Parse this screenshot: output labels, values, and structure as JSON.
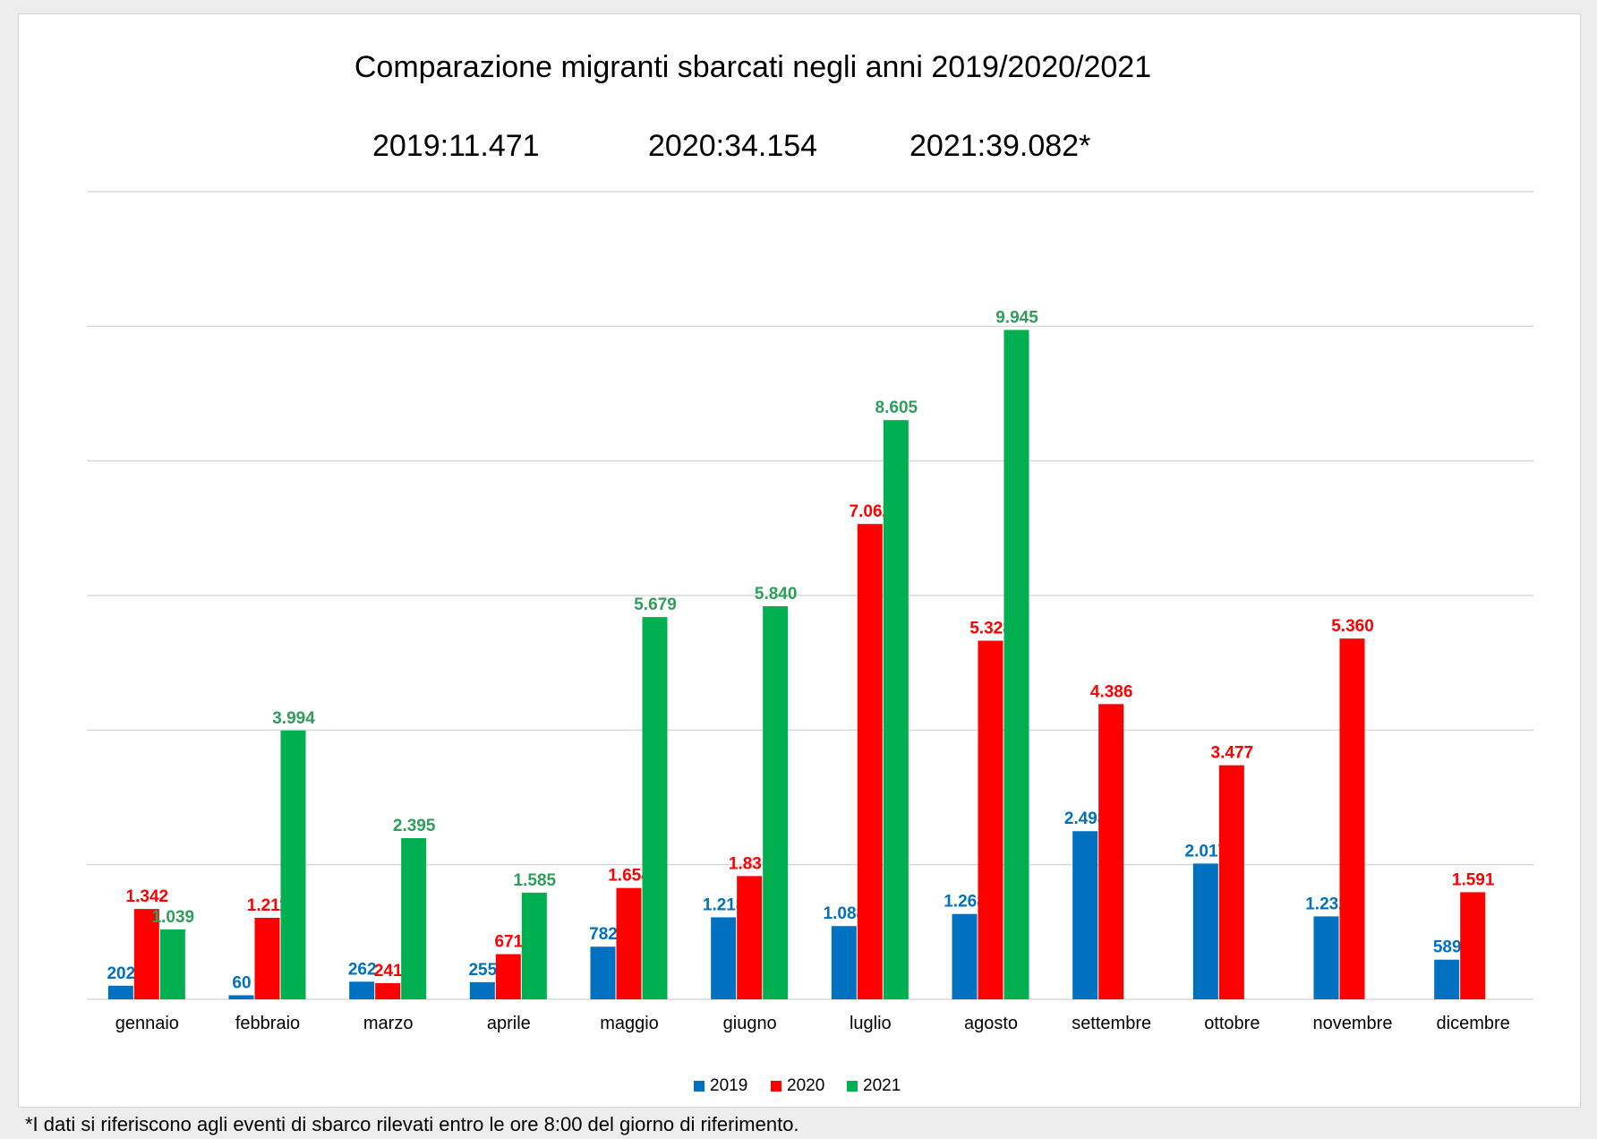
{
  "chart_data": {
    "type": "bar",
    "title": "Comparazione migranti sbarcati negli anni 2019/2020/2021",
    "totals": [
      "2019:11.471",
      "2020:34.154",
      "2021:39.082*"
    ],
    "categories": [
      "gennaio",
      "febbraio",
      "marzo",
      "aprile",
      "maggio",
      "giugno",
      "luglio",
      "agosto",
      "settembre",
      "ottobre",
      "novembre",
      "dicembre"
    ],
    "series": [
      {
        "name": "2019",
        "color": "#0070c0",
        "values": [
          202,
          60,
          262,
          255,
          782,
          1218,
          1088,
          1268,
          2498,
          2017,
          1232,
          589
        ],
        "labels": [
          "202",
          "60",
          "262",
          "255",
          "782",
          "1.218",
          "1.088",
          "1.268",
          "2.498",
          "2.017",
          "1.232",
          "589"
        ]
      },
      {
        "name": "2020",
        "color": "#ff0000",
        "values": [
          1342,
          1211,
          241,
          671,
          1654,
          1831,
          7062,
          5328,
          4386,
          3477,
          5360,
          1591
        ],
        "labels": [
          "1.342",
          "1.211",
          "241",
          "671",
          "1.654",
          "1.831",
          "7.062",
          "5.328",
          "4.386",
          "3.477",
          "5.360",
          "1.591"
        ]
      },
      {
        "name": "2021",
        "color": "#00b050",
        "label_color": "#2e9e5b",
        "values": [
          1039,
          3994,
          2395,
          1585,
          5679,
          5840,
          8605,
          9945,
          null,
          null,
          null,
          null
        ],
        "labels": [
          "1.039",
          "3.994",
          "2.395",
          "1.585",
          "5.679",
          "5.840",
          "8.605",
          "9.945",
          "",
          "",
          "",
          ""
        ]
      }
    ],
    "ylim": [
      0,
      12000
    ],
    "grid": true,
    "legend": "bottom",
    "footnote": "*I dati si riferiscono agli eventi di sbarco rilevati entro le ore 8:00 del giorno di riferimento."
  }
}
